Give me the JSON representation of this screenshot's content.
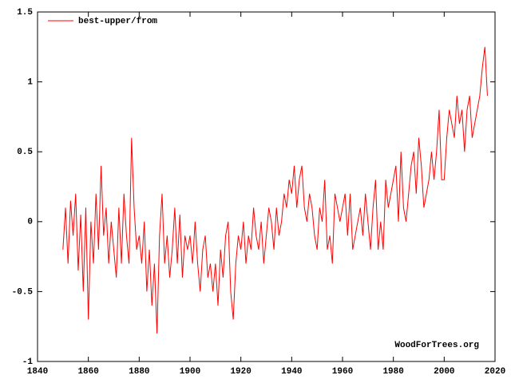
{
  "chart_data": {
    "type": "line",
    "series": [
      {
        "name": "best-upper/from",
        "color": "#ff0000",
        "x": [
          1850,
          1851,
          1852,
          1853,
          1854,
          1855,
          1856,
          1857,
          1858,
          1859,
          1860,
          1861,
          1862,
          1863,
          1864,
          1865,
          1866,
          1867,
          1868,
          1869,
          1870,
          1871,
          1872,
          1873,
          1874,
          1875,
          1876,
          1877,
          1878,
          1879,
          1880,
          1881,
          1882,
          1883,
          1884,
          1885,
          1886,
          1887,
          1888,
          1889,
          1890,
          1891,
          1892,
          1893,
          1894,
          1895,
          1896,
          1897,
          1898,
          1899,
          1900,
          1901,
          1902,
          1903,
          1904,
          1905,
          1906,
          1907,
          1908,
          1909,
          1910,
          1911,
          1912,
          1913,
          1914,
          1915,
          1916,
          1917,
          1918,
          1919,
          1920,
          1921,
          1922,
          1923,
          1924,
          1925,
          1926,
          1927,
          1928,
          1929,
          1930,
          1931,
          1932,
          1933,
          1934,
          1935,
          1936,
          1937,
          1938,
          1939,
          1940,
          1941,
          1942,
          1943,
          1944,
          1945,
          1946,
          1947,
          1948,
          1949,
          1950,
          1951,
          1952,
          1953,
          1954,
          1955,
          1956,
          1957,
          1958,
          1959,
          1960,
          1961,
          1962,
          1963,
          1964,
          1965,
          1966,
          1967,
          1968,
          1969,
          1970,
          1971,
          1972,
          1973,
          1974,
          1975,
          1976,
          1977,
          1978,
          1979,
          1980,
          1981,
          1982,
          1983,
          1984,
          1985,
          1986,
          1987,
          1988,
          1989,
          1990,
          1991,
          1992,
          1993,
          1994,
          1995,
          1996,
          1997,
          1998,
          1999,
          2000,
          2001,
          2002,
          2003,
          2004,
          2005,
          2006,
          2007,
          2008,
          2009,
          2010,
          2011,
          2012,
          2013,
          2014,
          2015,
          2016,
          2017
        ],
        "values": [
          -0.2,
          0.1,
          -0.3,
          0.15,
          -0.1,
          0.2,
          -0.35,
          0.05,
          -0.5,
          0.1,
          -0.7,
          0.0,
          -0.3,
          0.2,
          -0.2,
          0.4,
          -0.1,
          0.1,
          -0.3,
          0.0,
          -0.2,
          -0.4,
          0.1,
          -0.3,
          0.2,
          -0.1,
          -0.3,
          0.6,
          0.1,
          -0.2,
          -0.1,
          -0.3,
          0.0,
          -0.5,
          -0.2,
          -0.6,
          -0.3,
          -0.8,
          -0.1,
          0.2,
          -0.3,
          -0.1,
          -0.4,
          -0.2,
          0.1,
          -0.3,
          0.05,
          -0.4,
          -0.1,
          -0.2,
          -0.1,
          -0.3,
          0.0,
          -0.3,
          -0.5,
          -0.2,
          -0.1,
          -0.4,
          -0.3,
          -0.5,
          -0.3,
          -0.6,
          -0.2,
          -0.4,
          -0.1,
          0.0,
          -0.5,
          -0.7,
          -0.3,
          -0.1,
          -0.2,
          0.0,
          -0.3,
          -0.1,
          -0.2,
          0.1,
          -0.1,
          -0.2,
          0.0,
          -0.3,
          -0.1,
          0.1,
          0.0,
          -0.2,
          0.1,
          -0.1,
          0.0,
          0.2,
          0.1,
          0.3,
          0.2,
          0.4,
          0.1,
          0.3,
          0.4,
          0.1,
          0.0,
          0.2,
          0.1,
          -0.1,
          -0.2,
          0.1,
          0.0,
          0.3,
          -0.2,
          -0.1,
          -0.3,
          0.2,
          0.1,
          0.0,
          0.1,
          0.2,
          -0.1,
          0.2,
          -0.2,
          -0.1,
          0.0,
          0.1,
          -0.1,
          0.2,
          0.0,
          -0.2,
          0.1,
          0.3,
          -0.2,
          0.0,
          -0.2,
          0.3,
          0.1,
          0.2,
          0.3,
          0.4,
          0.0,
          0.5,
          0.1,
          0.0,
          0.2,
          0.4,
          0.5,
          0.2,
          0.6,
          0.4,
          0.1,
          0.2,
          0.3,
          0.5,
          0.3,
          0.5,
          0.8,
          0.3,
          0.3,
          0.6,
          0.8,
          0.7,
          0.6,
          0.9,
          0.7,
          0.8,
          0.5,
          0.8,
          0.9,
          0.6,
          0.7,
          0.8,
          0.9,
          1.1,
          1.25,
          0.9
        ]
      }
    ],
    "xlim": [
      1840,
      2020
    ],
    "xticks": [
      1840,
      1860,
      1880,
      1900,
      1920,
      1940,
      1960,
      1980,
      2000,
      2020
    ],
    "ylim": [
      -1,
      1.5
    ],
    "yticks": [
      -1,
      -0.5,
      0,
      0.5,
      1,
      1.5
    ],
    "legend": "top-left",
    "annotation": "WoodForTrees.org"
  }
}
